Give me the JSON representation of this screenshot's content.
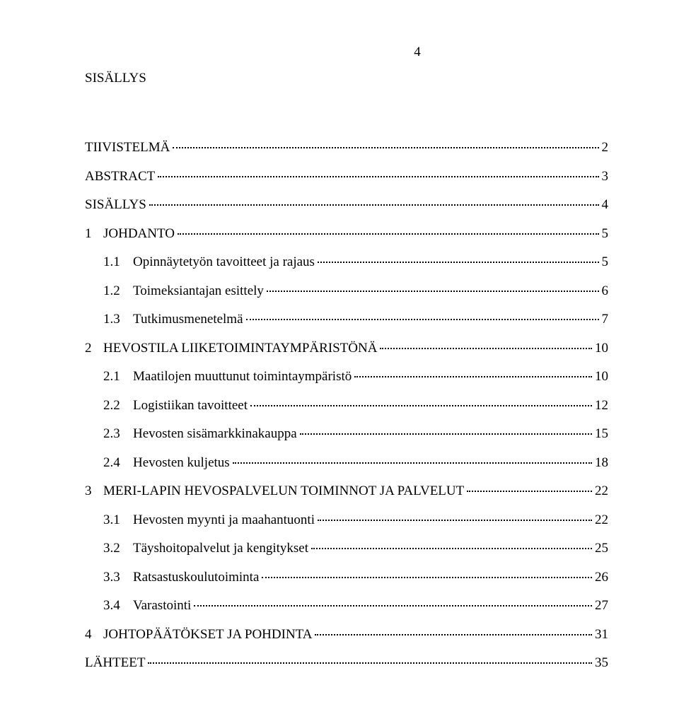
{
  "page_number": "4",
  "title": "SISÄLLYS",
  "entries": [
    {
      "level": 0,
      "num": "",
      "label": "TIIVISTELMÄ",
      "page": "2"
    },
    {
      "level": 0,
      "num": "",
      "label": "ABSTRACT",
      "page": "3"
    },
    {
      "level": 0,
      "num": "",
      "label": "SISÄLLYS",
      "page": "4"
    },
    {
      "level": 1,
      "num": "1",
      "label": "JOHDANTO",
      "page": "5"
    },
    {
      "level": 2,
      "num": "1.1",
      "label": "Opinnäytetyön tavoitteet ja rajaus",
      "page": "5"
    },
    {
      "level": 2,
      "num": "1.2",
      "label": "Toimeksiantajan esittely",
      "page": "6"
    },
    {
      "level": 2,
      "num": "1.3",
      "label": "Tutkimusmenetelmä",
      "page": "7"
    },
    {
      "level": 1,
      "num": "2",
      "label": "HEVOSTILA LIIKETOIMINTAYMPÄRISTÖNÄ",
      "page": "10"
    },
    {
      "level": 2,
      "num": "2.1",
      "label": "Maatilojen muuttunut toimintaympäristö",
      "page": "10"
    },
    {
      "level": 2,
      "num": "2.2",
      "label": "Logistiikan tavoitteet",
      "page": "12"
    },
    {
      "level": 2,
      "num": "2.3",
      "label": "Hevosten sisämarkkinakauppa",
      "page": "15"
    },
    {
      "level": 2,
      "num": "2.4",
      "label": "Hevosten kuljetus",
      "page": "18"
    },
    {
      "level": 1,
      "num": "3",
      "label": "MERI-LAPIN HEVOSPALVELUN TOIMINNOT JA PALVELUT",
      "page": "22"
    },
    {
      "level": 2,
      "num": "3.1",
      "label": "Hevosten myynti ja maahantuonti",
      "page": "22"
    },
    {
      "level": 2,
      "num": "3.2",
      "label": "Täyshoitopalvelut ja kengitykset",
      "page": "25"
    },
    {
      "level": 2,
      "num": "3.3",
      "label": "Ratsastuskoulutoiminta",
      "page": "26"
    },
    {
      "level": 2,
      "num": "3.4",
      "label": "Varastointi",
      "page": "27"
    },
    {
      "level": 1,
      "num": "4",
      "label": "JOHTOPÄÄTÖKSET JA POHDINTA",
      "page": "31"
    },
    {
      "level": 0,
      "num": "",
      "label": "LÄHTEET",
      "page": "35"
    }
  ]
}
